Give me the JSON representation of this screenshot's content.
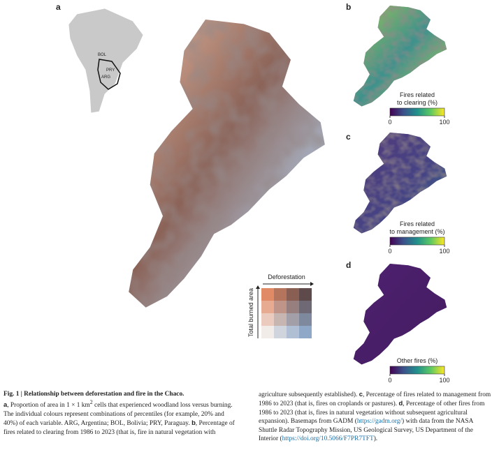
{
  "panel_labels": [
    "a",
    "b",
    "c",
    "d"
  ],
  "inset_labels": [
    "BOL",
    "PRY",
    "ARG"
  ],
  "legend": {
    "x_label": "Deforestation",
    "y_label": "Total burned area"
  },
  "colorbars": [
    {
      "title_lines": [
        "Fires related",
        "to clearing (%)"
      ],
      "ticks": [
        0,
        100
      ]
    },
    {
      "title_lines": [
        "Fires related",
        "to management (%)"
      ],
      "ticks": [
        0,
        100
      ]
    },
    {
      "title_lines": [
        "Other fires (%)"
      ],
      "ticks": [
        0,
        100
      ]
    }
  ],
  "caption": {
    "title": "Fig. 1 | Relationship between deforestation and fire in the Chaco.",
    "body": [
      "a",
      ", Proportion of area in 1 × 1 km",
      "2",
      " cells that experienced woodland loss versus burning. The individual colours represent combinations of percentiles (for example, 20% and 40%) of each variable. ARG, Argentina; BOL, Bolivia; PRY, Paraguay. ",
      "b",
      ", Percentage of fires related to clearing from 1986 to 2023 (that is, fire in natural vegetation with agriculture subsequently established). ",
      "c",
      ", Percentage of fires related to management from 1986 to 2023 (that is, fires on croplands or pastures). ",
      "d",
      ", Percentage of other fires from 1986 to 2023 (that is, fires in natural vegetation without subsequent agricultural expansion). Basemaps from GADM (",
      "https://gadm.org/",
      ") with data from the NASA Shuttle Radar Topography Mission, US Geological Survey, US Department of the Interior (",
      "https://doi.org/10.5066/F7PR7TFT",
      ")."
    ]
  }
}
